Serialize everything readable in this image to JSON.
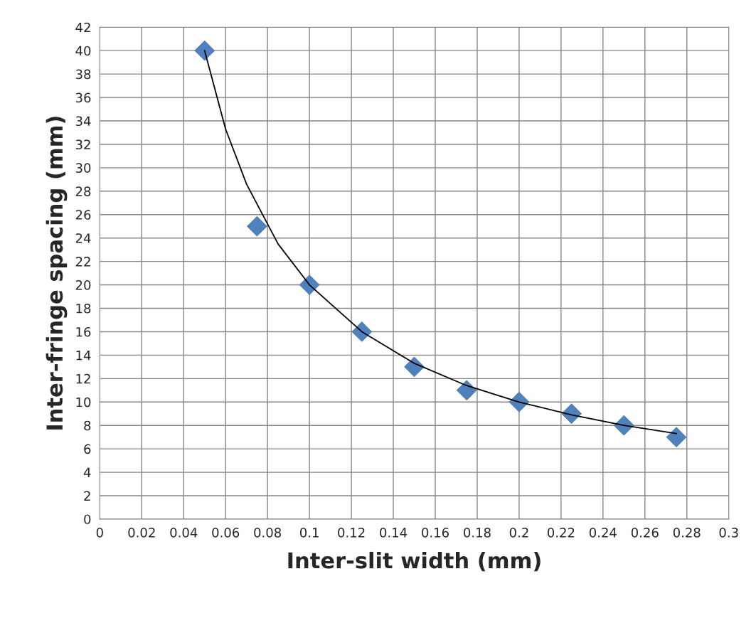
{
  "chart_data": {
    "type": "scatter",
    "xlabel": "Inter-slit width (mm)",
    "ylabel": "Inter-fringe spacing (mm)",
    "x": [
      0.05,
      0.075,
      0.1,
      0.125,
      0.15,
      0.175,
      0.2,
      0.225,
      0.25,
      0.275
    ],
    "series": [
      {
        "type": "scatter",
        "color": "#4f81bd",
        "marker": "diamond",
        "values": [
          40,
          25,
          20,
          16,
          13,
          11,
          10,
          9,
          8,
          7
        ]
      },
      {
        "type": "line",
        "color": "#000000",
        "marker": "none",
        "line_style": "solid",
        "x": [
          0.05,
          0.06,
          0.07,
          0.085,
          0.1,
          0.125,
          0.15,
          0.175,
          0.2,
          0.225,
          0.25,
          0.275
        ],
        "values": [
          40,
          33.3,
          28.6,
          23.5,
          20,
          16,
          13.3,
          11.4,
          10,
          8.9,
          8,
          7.3
        ]
      }
    ],
    "xlim": [
      0,
      0.3
    ],
    "xticks": [
      0,
      0.02,
      0.04,
      0.06,
      0.08,
      0.1,
      0.12,
      0.14,
      0.16,
      0.18,
      0.2,
      0.22,
      0.24,
      0.26,
      0.28,
      0.3
    ],
    "ylim": [
      0,
      42
    ],
    "yticks": [
      0,
      2,
      4,
      6,
      8,
      10,
      12,
      14,
      16,
      18,
      20,
      22,
      24,
      26,
      28,
      30,
      32,
      34,
      36,
      38,
      40,
      42
    ],
    "grid": true,
    "legend": false
  }
}
